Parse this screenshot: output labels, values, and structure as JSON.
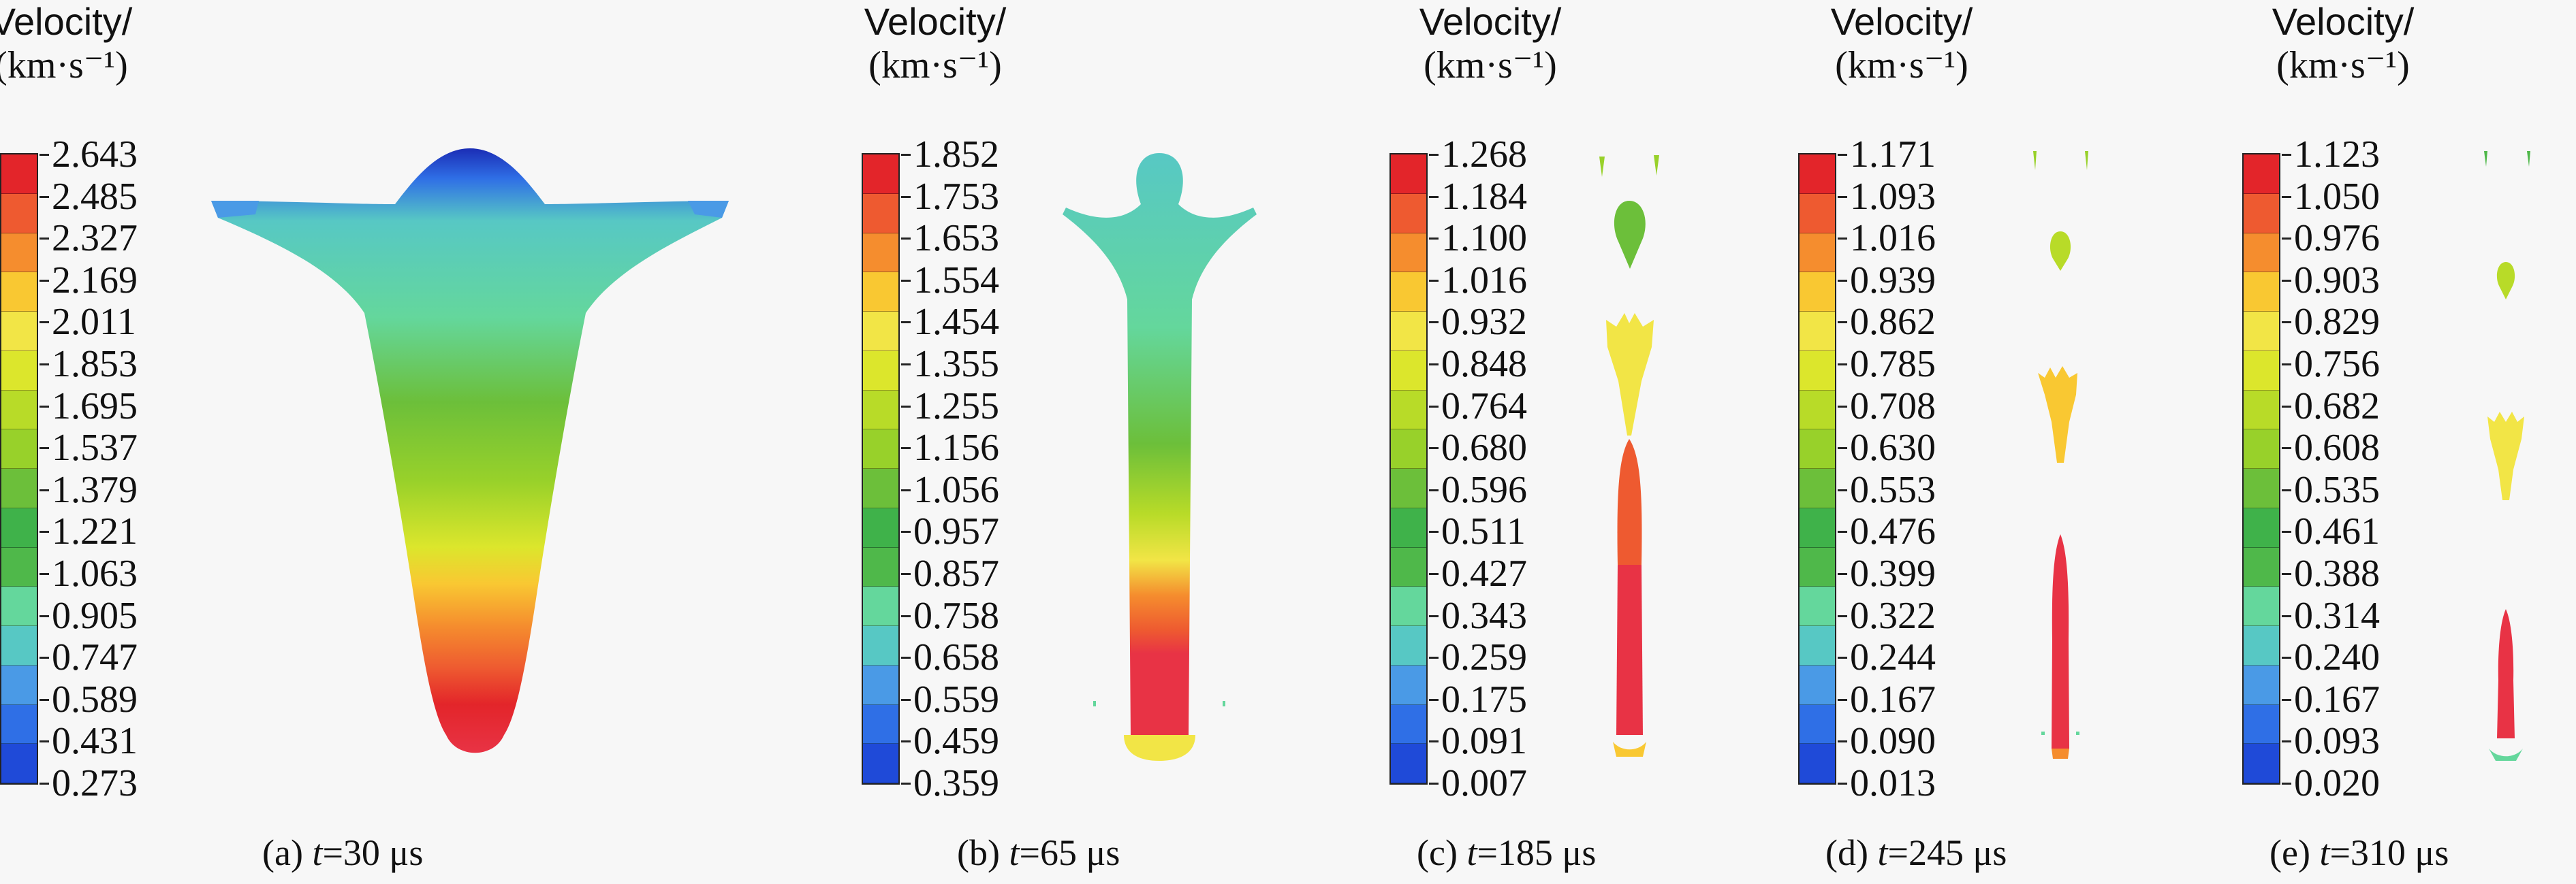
{
  "colorbar_title": {
    "line1": "Velocity/",
    "line2": "(km·s⁻¹)"
  },
  "colors": [
    "#1b2db5",
    "#1f4ad8",
    "#2f6fe6",
    "#4a9ae6",
    "#57c8c4",
    "#64d79c",
    "#4fb84a",
    "#3fb24a",
    "#6cbf3a",
    "#98d12a",
    "#b8db28",
    "#dce62c",
    "#f2e546",
    "#f9c832",
    "#f58d2e",
    "#ee5a30",
    "#e3252a"
  ],
  "panels": [
    {
      "caption_prefix": "(a) ",
      "t": "t",
      "caption_suffix": "=30 μs",
      "ticks": [
        "2.643",
        "2.485",
        "2.327",
        "2.169",
        "2.011",
        "1.853",
        "1.695",
        "1.537",
        "1.379",
        "1.221",
        "1.063",
        "0.905",
        "0.747",
        "0.589",
        "0.431",
        "0.273"
      ]
    },
    {
      "caption_prefix": "(b) ",
      "t": "t",
      "caption_suffix": "=65 μs",
      "ticks": [
        "1.852",
        "1.753",
        "1.653",
        "1.554",
        "1.454",
        "1.355",
        "1.255",
        "1.156",
        "1.056",
        "0.957",
        "0.857",
        "0.758",
        "0.658",
        "0.559",
        "0.459",
        "0.359"
      ]
    },
    {
      "caption_prefix": "(c) ",
      "t": "t",
      "caption_suffix": "=185 μs",
      "ticks": [
        "1.268",
        "1.184",
        "1.100",
        "1.016",
        "0.932",
        "0.848",
        "0.764",
        "0.680",
        "0.596",
        "0.511",
        "0.427",
        "0.343",
        "0.259",
        "0.175",
        "0.091",
        "0.007"
      ]
    },
    {
      "caption_prefix": "(d) ",
      "t": "t",
      "caption_suffix": "=245 μs",
      "ticks": [
        "1.171",
        "1.093",
        "1.016",
        "0.939",
        "0.862",
        "0.785",
        "0.708",
        "0.630",
        "0.553",
        "0.476",
        "0.399",
        "0.322",
        "0.244",
        "0.167",
        "0.090",
        "0.013"
      ]
    },
    {
      "caption_prefix": "(e) ",
      "t": "t",
      "caption_suffix": "=310 μs",
      "ticks": [
        "1.123",
        "1.050",
        "0.976",
        "0.903",
        "0.829",
        "0.756",
        "0.682",
        "0.608",
        "0.535",
        "0.461",
        "0.388",
        "0.314",
        "0.240",
        "0.167",
        "0.093",
        "0.020"
      ]
    }
  ]
}
